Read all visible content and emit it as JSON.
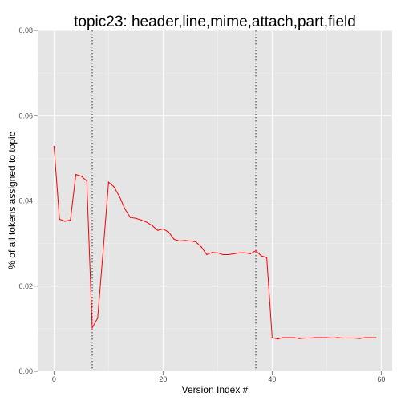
{
  "chart_data": {
    "type": "line",
    "title": "topic23: header,line,mime,attach,part,field",
    "xlabel": "Version Index #",
    "ylabel": "% of all tokens assigned to topic",
    "xlim": [
      -3,
      62
    ],
    "ylim": [
      0,
      0.08
    ],
    "xticks": [
      0,
      20,
      40,
      60
    ],
    "xtick_labels": [
      "0",
      "20",
      "40",
      "60"
    ],
    "yticks": [
      0,
      0.02,
      0.04,
      0.06,
      0.08
    ],
    "ytick_labels": [
      "0.00",
      "0.02",
      "0.04",
      "0.06",
      "0.08"
    ],
    "grid": true,
    "colors": {
      "panel": "#e5e5e5",
      "grid": "#ffffff",
      "line": "#ff0000",
      "vline": "#333333"
    },
    "vlines": [
      7,
      37
    ],
    "series": [
      {
        "color": "#ff0000",
        "x": [
          0,
          1,
          2,
          3,
          4,
          5,
          6,
          7,
          8,
          9,
          10,
          11,
          12,
          13,
          14,
          15,
          16,
          17,
          18,
          19,
          20,
          21,
          22,
          23,
          24,
          25,
          26,
          27,
          28,
          29,
          30,
          31,
          32,
          33,
          34,
          35,
          36,
          37,
          38,
          39,
          40,
          41,
          42,
          43,
          44,
          45,
          46,
          47,
          48,
          49,
          50,
          51,
          52,
          53,
          54,
          55,
          56,
          57,
          58,
          59
        ],
        "y": [
          0.0528,
          0.0357,
          0.0352,
          0.0355,
          0.0462,
          0.0458,
          0.0447,
          0.0102,
          0.0125,
          0.0282,
          0.0444,
          0.0433,
          0.041,
          0.0381,
          0.0361,
          0.0359,
          0.0355,
          0.035,
          0.0342,
          0.0331,
          0.0334,
          0.0327,
          0.031,
          0.0306,
          0.0307,
          0.0306,
          0.0304,
          0.0292,
          0.0274,
          0.0279,
          0.0278,
          0.0274,
          0.0274,
          0.0276,
          0.0278,
          0.0278,
          0.0276,
          0.0283,
          0.0271,
          0.0267,
          0.0079,
          0.0076,
          0.0079,
          0.0079,
          0.0079,
          0.0077,
          0.0078,
          0.0078,
          0.0079,
          0.0079,
          0.0079,
          0.0078,
          0.0079,
          0.0078,
          0.0078,
          0.0078,
          0.0077,
          0.0079,
          0.0079,
          0.0079
        ]
      }
    ]
  }
}
